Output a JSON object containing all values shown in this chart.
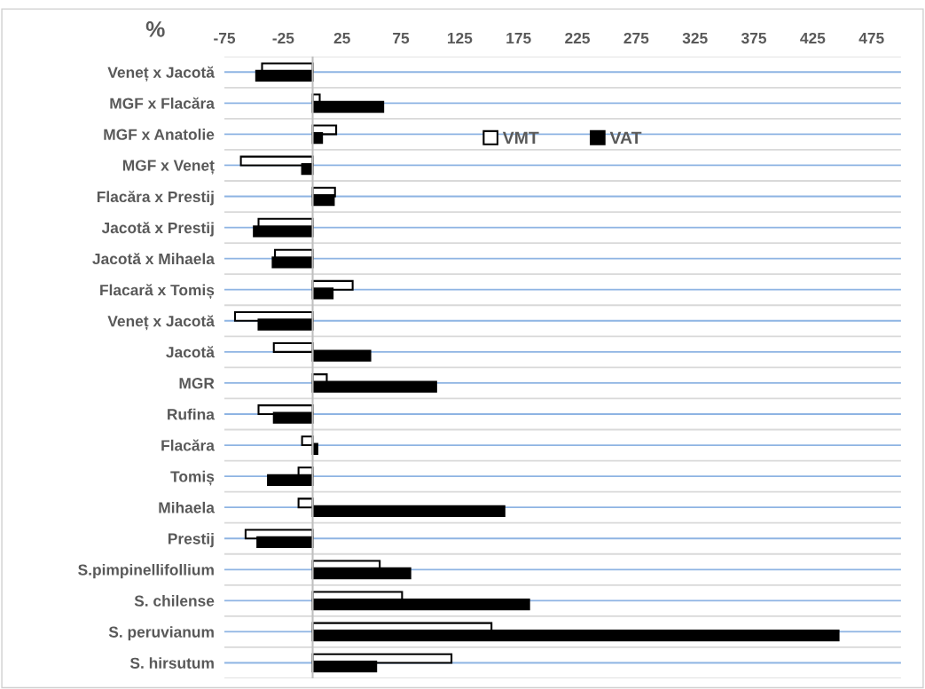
{
  "chart_data": {
    "type": "bar",
    "orientation": "horizontal",
    "title": "%",
    "categories": [
      "Veneț x Jacotă",
      "MGF x Flacăra",
      "MGF x Anatolie",
      "MGF x Veneț",
      "Flacăra x Prestij",
      "Jacotă x Prestij",
      "Jacotă x Mihaela",
      "Flacară x Tomiș",
      "Veneț x Jacotă",
      "Jacotă",
      "MGR",
      "Rufina",
      "Flacăra",
      "Tomiș",
      "Mihaela",
      "Prestij",
      "S.pimpinellifollium",
      "S. chilense",
      "S. peruvianum",
      "S. hirsutum"
    ],
    "series": [
      {
        "name": "VMT",
        "color": "#ffffff",
        "values": [
          -43,
          6,
          20,
          -61,
          19,
          -46,
          -32,
          34,
          -66,
          -33,
          12,
          -46,
          -9,
          -12,
          -12,
          -57,
          57,
          76,
          152,
          118
        ]
      },
      {
        "name": "VAT",
        "color": "#000000",
        "values": [
          -48,
          60,
          8,
          -9,
          18,
          -50,
          -34,
          17,
          -46,
          49,
          105,
          -33,
          4,
          -38,
          163,
          -47,
          83,
          184,
          447,
          54
        ]
      }
    ],
    "xlim": [
      -75,
      500
    ],
    "xticks": [
      -75,
      -25,
      25,
      75,
      125,
      175,
      225,
      275,
      325,
      375,
      425,
      475
    ],
    "grid": "y",
    "legend": "top"
  }
}
